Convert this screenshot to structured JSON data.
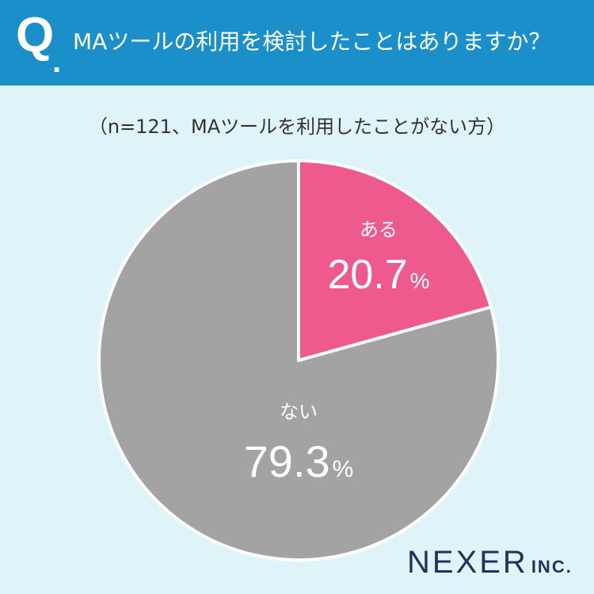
{
  "header": {
    "q_mark": "Q",
    "q_dot": ".",
    "question": "MAツールの利用を検討したことはありますか？"
  },
  "subtitle": "（n=121、MAツールを利用したことがない方）",
  "logo": {
    "main": "NEXER",
    "sub": "INC."
  },
  "colors": {
    "header": "#1b8fc9",
    "background": "#dff4f8",
    "yes": "#ef5a8e",
    "no": "#a3a3a3",
    "logo": "#1d3557"
  },
  "chart_data": {
    "type": "pie",
    "title": "MAツールの利用を検討したことはありますか？",
    "subtitle": "（n=121、MAツールを利用したことがない方）",
    "slices": [
      {
        "label": "ある",
        "value": 20.7,
        "display": "20.7",
        "unit": "%",
        "color": "#ef5a8e"
      },
      {
        "label": "ない",
        "value": 79.3,
        "display": "79.3",
        "unit": "%",
        "color": "#a3a3a3"
      }
    ]
  }
}
